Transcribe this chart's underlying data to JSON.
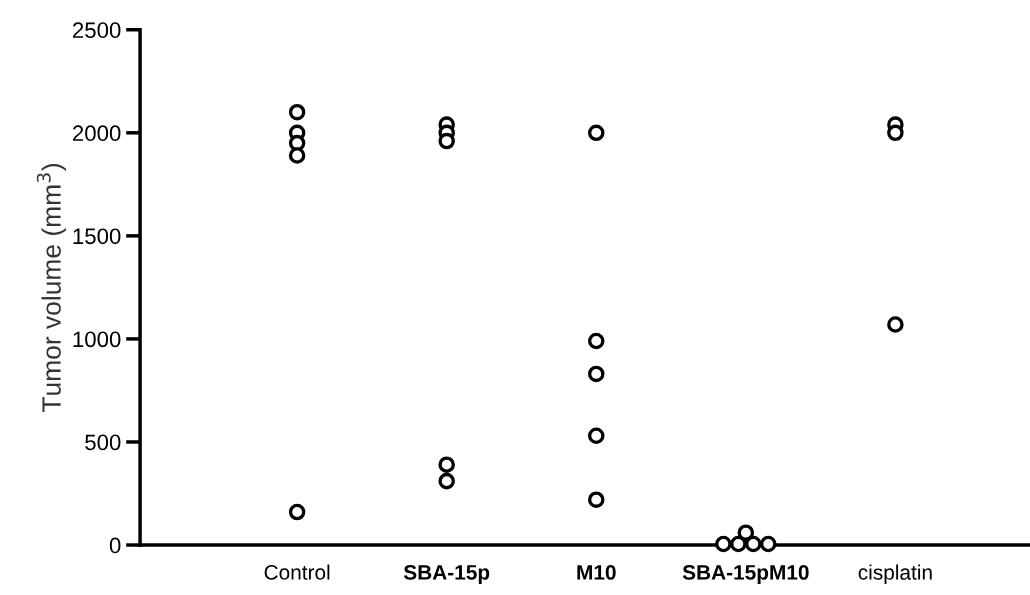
{
  "chart_data": {
    "type": "scatter",
    "ylabel": "Tumor volume (mm$^{3}$)",
    "categories": [
      "Control",
      "SBA-15p",
      "M10",
      "SBA-15pM10",
      "cisplatin"
    ],
    "series": [
      {
        "color": "#000000",
        "x": [
          "Control",
          "Control",
          "Control",
          "Control",
          "Control",
          "SBA-15p",
          "SBA-15p",
          "SBA-15p",
          "SBA-15p",
          "SBA-15p",
          "M10",
          "M10",
          "M10",
          "M10",
          "M10",
          "SBA-15pM10",
          "SBA-15pM10",
          "SBA-15pM10",
          "SBA-15pM10",
          "SBA-15pM10",
          "cisplatin",
          "cisplatin",
          "cisplatin"
        ],
        "values": [
          2100,
          2000,
          1950,
          1890,
          160,
          2040,
          2000,
          1960,
          390,
          310,
          2000,
          990,
          830,
          530,
          220,
          5,
          5,
          60,
          5,
          5,
          2040,
          2000,
          1070
        ]
      }
    ],
    "ylim": [
      0,
      2500
    ],
    "yticks": [
      0,
      500,
      1000,
      1500,
      2000,
      2500
    ],
    "marker": "circle",
    "grid": false
  }
}
